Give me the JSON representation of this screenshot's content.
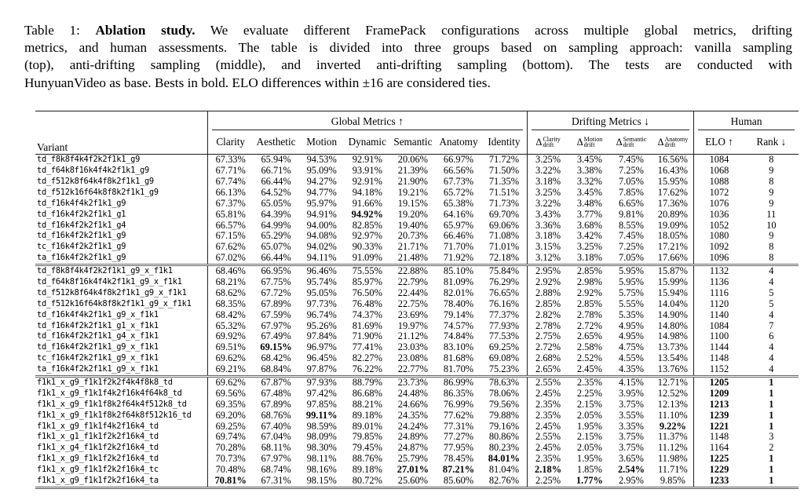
{
  "caption": {
    "prefix": "Table 1: ",
    "bold": "Ablation study.",
    "line1_rest": " We evaluate different FramePack configurations across multiple global metrics, drifting",
    "line2": "metrics, and human assessments. The table is divided into three groups based on sampling approach: vanilla sampling",
    "line3": "(top), anti-drifting sampling (middle), and inverted anti-drifting sampling (bottom). The tests are conducted with",
    "line4": "HunyuanVideo as base. Bests in bold. ELO differences within ±16 are considered ties."
  },
  "table": {
    "header": {
      "variant": "Variant",
      "global_group": "Global Metrics ↑",
      "drifting_group": "Drifting Metrics ↓",
      "human_group": "Human",
      "metric_columns": [
        "Clarity",
        "Aesthetic",
        "Motion",
        "Dynamic",
        "Semantic",
        "Anatomy",
        "Identity"
      ],
      "delta_columns": [
        {
          "symbol": "Δ",
          "sup": "Clarity",
          "sub": "drift"
        },
        {
          "symbol": "Δ",
          "sup": "Motion",
          "sub": "drift"
        },
        {
          "symbol": "Δ",
          "sup": "Semantic",
          "sub": "drift"
        },
        {
          "symbol": "Δ",
          "sup": "Anatomy",
          "sub": "drift"
        }
      ],
      "elo_label": "ELO ↑",
      "rank_label": "Rank ↓",
      "column_keys": [
        "clarity",
        "aesthetic",
        "motion",
        "dynamic",
        "semantic",
        "anatomy",
        "identity",
        "delta-clarity",
        "delta-motion",
        "delta-semantic",
        "delta-anatomy",
        "elo",
        "rank"
      ]
    },
    "groups": [
      {
        "name": "vanilla-sampling",
        "rows": [
          {
            "variant": "td_f8k8f4k4f2k2f1k1_g9",
            "values": [
              "67.33%",
              "65.94%",
              "94.53%",
              "92.91%",
              "20.06%",
              "66.97%",
              "71.72%",
              "3.25%",
              "3.45%",
              "7.45%",
              "16.56%",
              "1084",
              "8"
            ],
            "bold": []
          },
          {
            "variant": "td_f64k8f16k4f4k2f1k1_g9",
            "values": [
              "67.71%",
              "66.71%",
              "95.09%",
              "93.91%",
              "21.39%",
              "66.56%",
              "71.50%",
              "3.22%",
              "3.38%",
              "7.25%",
              "16.43%",
              "1068",
              "9"
            ],
            "bold": []
          },
          {
            "variant": "td_f512k8f64k4f8k2f1k1_g9",
            "values": [
              "67.74%",
              "66.44%",
              "94.27%",
              "92.91%",
              "21.90%",
              "67.73%",
              "71.35%",
              "3.18%",
              "3.32%",
              "7.05%",
              "15.95%",
              "1088",
              "8"
            ],
            "bold": []
          },
          {
            "variant": "td_f512k16f64k8f8k2f1k1_g9",
            "values": [
              "66.13%",
              "64.52%",
              "94.77%",
              "94.18%",
              "19.21%",
              "65.72%",
              "71.51%",
              "3.25%",
              "3.45%",
              "7.85%",
              "17.62%",
              "1072",
              "9"
            ],
            "bold": []
          },
          {
            "variant": "td_f16k4f4k2f1k1_g9",
            "values": [
              "67.37%",
              "65.05%",
              "95.97%",
              "91.66%",
              "19.15%",
              "65.38%",
              "71.73%",
              "3.22%",
              "3.48%",
              "6.65%",
              "17.36%",
              "1076",
              "9"
            ],
            "bold": []
          },
          {
            "variant": "td_f16k4f2k2f1k1_g1",
            "values": [
              "65.81%",
              "64.39%",
              "94.91%",
              "94.92%",
              "19.20%",
              "64.16%",
              "69.70%",
              "3.43%",
              "3.77%",
              "9.81%",
              "20.89%",
              "1036",
              "11"
            ],
            "bold": [
              3
            ]
          },
          {
            "variant": "td_f16k4f2k2f1k1_g4",
            "values": [
              "66.57%",
              "64.99%",
              "94.00%",
              "82.85%",
              "19.40%",
              "65.97%",
              "69.06%",
              "3.36%",
              "3.68%",
              "8.55%",
              "19.09%",
              "1052",
              "10"
            ],
            "bold": []
          },
          {
            "variant": "td_f16k4f2k2f1k1_g9",
            "values": [
              "67.15%",
              "65.29%",
              "94.08%",
              "92.97%",
              "20.73%",
              "66.46%",
              "71.08%",
              "3.18%",
              "3.42%",
              "7.45%",
              "18.05%",
              "1080",
              "9"
            ],
            "bold": []
          },
          {
            "variant": "tc_f16k4f2k2f1k1_g9",
            "values": [
              "67.62%",
              "65.07%",
              "94.02%",
              "90.33%",
              "21.71%",
              "71.70%",
              "71.01%",
              "3.15%",
              "3.25%",
              "7.25%",
              "17.21%",
              "1092",
              "8"
            ],
            "bold": []
          },
          {
            "variant": "ta_f16k4f2k2f1k1_g9",
            "values": [
              "67.02%",
              "66.44%",
              "94.11%",
              "91.09%",
              "21.48%",
              "71.92%",
              "72.18%",
              "3.12%",
              "3.18%",
              "7.05%",
              "17.66%",
              "1096",
              "8"
            ],
            "bold": []
          }
        ]
      },
      {
        "name": "anti-drifting-sampling",
        "rows": [
          {
            "variant": "td_f8k8f4k4f2k2f1k1_g9_x_f1k1",
            "values": [
              "68.46%",
              "66.95%",
              "96.46%",
              "75.55%",
              "22.88%",
              "85.10%",
              "75.84%",
              "2.95%",
              "2.85%",
              "5.95%",
              "15.87%",
              "1132",
              "4"
            ],
            "bold": []
          },
          {
            "variant": "td_f64k8f16k4f4k2f1k1_g9_x_f1k1",
            "values": [
              "68.21%",
              "67.75%",
              "95.74%",
              "85.97%",
              "22.79%",
              "81.09%",
              "76.29%",
              "2.92%",
              "2.98%",
              "5.95%",
              "15.99%",
              "1136",
              "4"
            ],
            "bold": []
          },
          {
            "variant": "td_f512k8f64k4f8k2f1k1_g9_x_f1k1",
            "values": [
              "68.62%",
              "67.72%",
              "95.05%",
              "76.50%",
              "22.44%",
              "82.01%",
              "76.65%",
              "2.88%",
              "2.92%",
              "5.75%",
              "15.94%",
              "1116",
              "5"
            ],
            "bold": []
          },
          {
            "variant": "td_f512k16f64k8f8k2f1k1_g9_x_f1k1",
            "values": [
              "68.35%",
              "67.89%",
              "97.73%",
              "76.48%",
              "22.75%",
              "78.40%",
              "76.16%",
              "2.85%",
              "2.85%",
              "5.55%",
              "14.04%",
              "1120",
              "5"
            ],
            "bold": []
          },
          {
            "variant": "td_f16k4f4k2f1k1_g9_x_f1k1",
            "values": [
              "68.42%",
              "67.59%",
              "96.74%",
              "74.37%",
              "23.69%",
              "79.14%",
              "77.37%",
              "2.82%",
              "2.78%",
              "5.35%",
              "14.90%",
              "1140",
              "4"
            ],
            "bold": []
          },
          {
            "variant": "td_f16k4f2k2f1k1_g1_x_f1k1",
            "values": [
              "65.32%",
              "67.97%",
              "95.26%",
              "81.69%",
              "19.97%",
              "74.57%",
              "77.93%",
              "2.78%",
              "2.72%",
              "4.95%",
              "14.80%",
              "1084",
              "7"
            ],
            "bold": []
          },
          {
            "variant": "td_f16k4f2k2f1k1_g4_x_f1k1",
            "values": [
              "69.92%",
              "67.49%",
              "97.84%",
              "71.90%",
              "21.12%",
              "74.84%",
              "77.53%",
              "2.75%",
              "2.65%",
              "4.95%",
              "14.98%",
              "1100",
              "6"
            ],
            "bold": []
          },
          {
            "variant": "td_f16k4f2k2f1k1_g9_x_f1k1",
            "values": [
              "69.51%",
              "69.15%",
              "96.97%",
              "77.41%",
              "23.03%",
              "83.10%",
              "69.25%",
              "2.72%",
              "2.58%",
              "4.75%",
              "13.73%",
              "1144",
              "4"
            ],
            "bold": [
              1
            ]
          },
          {
            "variant": "tc_f16k4f2k2f1k1_g9_x_f1k1",
            "values": [
              "69.62%",
              "68.42%",
              "96.45%",
              "82.27%",
              "23.08%",
              "81.68%",
              "69.08%",
              "2.68%",
              "2.52%",
              "4.55%",
              "13.54%",
              "1148",
              "4"
            ],
            "bold": []
          },
          {
            "variant": "ta_f16k4f2k2f1k1_g9_x_f1k1",
            "values": [
              "69.21%",
              "68.84%",
              "97.87%",
              "76.22%",
              "22.77%",
              "81.70%",
              "75.23%",
              "2.65%",
              "2.45%",
              "4.35%",
              "13.76%",
              "1152",
              "4"
            ],
            "bold": []
          }
        ]
      },
      {
        "name": "inverted-anti-drifting-sampling",
        "rows": [
          {
            "variant": "f1k1_x_g9_f1k1f2k2f4k4f8k8_td",
            "values": [
              "69.62%",
              "67.87%",
              "97.93%",
              "88.79%",
              "23.73%",
              "86.99%",
              "78.63%",
              "2.55%",
              "2.35%",
              "4.15%",
              "12.71%",
              "1205",
              "1"
            ],
            "bold": [
              11,
              12
            ]
          },
          {
            "variant": "f1k1_x_g9_f1k1f4k2f16k4f64k8_td",
            "values": [
              "69.56%",
              "67.48%",
              "97.42%",
              "86.68%",
              "24.48%",
              "86.35%",
              "78.06%",
              "2.45%",
              "2.25%",
              "3.95%",
              "12.52%",
              "1209",
              "1"
            ],
            "bold": [
              11,
              12
            ]
          },
          {
            "variant": "f1k1_x_g9_f1k1f8k2f64k4f512k8_td",
            "values": [
              "69.35%",
              "67.89%",
              "97.85%",
              "88.21%",
              "24.66%",
              "76.99%",
              "79.56%",
              "2.35%",
              "2.15%",
              "3.75%",
              "12.13%",
              "1213",
              "1"
            ],
            "bold": [
              11,
              12
            ]
          },
          {
            "variant": "f1k1_x_g9_f1k1f8k2f64k8f512k16_td",
            "values": [
              "69.20%",
              "68.76%",
              "99.11%",
              "89.18%",
              "24.35%",
              "77.62%",
              "79.88%",
              "2.35%",
              "2.05%",
              "3.55%",
              "11.10%",
              "1239",
              "1"
            ],
            "bold": [
              2,
              11,
              12
            ]
          },
          {
            "variant": "f1k1_x_g9_f1k1f4k2f16k4_td",
            "values": [
              "69.25%",
              "67.40%",
              "98.59%",
              "89.01%",
              "24.24%",
              "77.31%",
              "79.16%",
              "2.45%",
              "1.95%",
              "3.35%",
              "9.22%",
              "1221",
              "1"
            ],
            "bold": [
              10,
              11,
              12
            ]
          },
          {
            "variant": "f1k1_x_g1_f1k1f2k2f16k4_td",
            "values": [
              "69.74%",
              "67.04%",
              "98.09%",
              "79.85%",
              "24.89%",
              "77.27%",
              "80.86%",
              "2.55%",
              "2.15%",
              "3.75%",
              "11.37%",
              "1148",
              "3"
            ],
            "bold": []
          },
          {
            "variant": "f1k1_x_g4_f1k1f2k2f16k4_td",
            "values": [
              "70.28%",
              "68.11%",
              "98.30%",
              "79.45%",
              "24.87%",
              "77.95%",
              "80.23%",
              "2.45%",
              "2.05%",
              "3.75%",
              "11.12%",
              "1164",
              "2"
            ],
            "bold": []
          },
          {
            "variant": "f1k1_x_g9_f1k1f2k2f16k4_td",
            "values": [
              "70.73%",
              "67.97%",
              "98.11%",
              "88.76%",
              "25.79%",
              "78.45%",
              "84.01%",
              "2.35%",
              "1.95%",
              "3.65%",
              "11.98%",
              "1225",
              "1"
            ],
            "bold": [
              6,
              11,
              12
            ]
          },
          {
            "variant": "f1k1_x_g9_f1k1f2k2f16k4_tc",
            "values": [
              "70.48%",
              "68.74%",
              "98.16%",
              "89.18%",
              "27.01%",
              "87.21%",
              "81.04%",
              "2.18%",
              "1.85%",
              "2.54%",
              "11.71%",
              "1229",
              "1"
            ],
            "bold": [
              4,
              5,
              7,
              9,
              11,
              12
            ]
          },
          {
            "variant": "f1k1_x_g9_f1k1f2k2f16k4_ta",
            "values": [
              "70.81%",
              "67.31%",
              "98.15%",
              "80.72%",
              "25.60%",
              "85.60%",
              "82.76%",
              "2.25%",
              "1.77%",
              "2.95%",
              "9.85%",
              "1233",
              "1"
            ],
            "bold": [
              0,
              8,
              11,
              12
            ]
          }
        ]
      }
    ]
  }
}
